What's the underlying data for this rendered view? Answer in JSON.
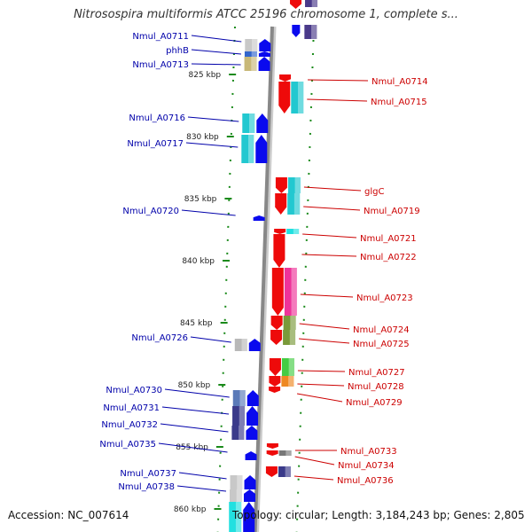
{
  "header": {
    "title": "Nitrosospira multiformis ATCC 25196 chromosome 1, complete s..."
  },
  "footer": {
    "accession": "Accession: NC_007614",
    "summary": "Topology: circular; Length: 3,184,243 bp; Genes: 2,805"
  },
  "colors": {
    "backbone": "#888888",
    "tick": "#1a8a1a",
    "forward_label": "#0000aa",
    "reverse_label": "#cc0000",
    "forward_arrow": "#0a0aee",
    "reverse_arrow": "#ee0a0a"
  },
  "scale": {
    "ticks": [
      {
        "label": "825 kbp"
      },
      {
        "label": "830 kbp"
      },
      {
        "label": "835 kbp"
      },
      {
        "label": "840 kbp"
      },
      {
        "label": "845 kbp"
      },
      {
        "label": "850 kbp"
      },
      {
        "label": "855 kbp"
      },
      {
        "label": "860 kbp"
      }
    ]
  },
  "genes": {
    "forward": [
      {
        "label": "Nmul_A0711",
        "color": "#0a0aee",
        "class_color": "#c8c8c8"
      },
      {
        "label": "phhB",
        "color": "#0a0aee",
        "class_color": "#3366cc"
      },
      {
        "label": "Nmul_A0713",
        "color": "#0a0aee",
        "class_color": "#c8b878"
      },
      {
        "label": "Nmul_A0716",
        "color": "#0a0aee",
        "class_color": "#22c8d0"
      },
      {
        "label": "Nmul_A0717",
        "color": "#0a0aee",
        "class_color": "#22c8d0"
      },
      {
        "label": "Nmul_A0720",
        "color": "#0a0aee",
        "class_color": ""
      },
      {
        "label": "Nmul_A0726",
        "color": "#0a0aee",
        "class_color": "#b8b8b8"
      },
      {
        "label": "Nmul_A0730",
        "color": "#0a0aee",
        "class_color": "#5a7ab8"
      },
      {
        "label": "Nmul_A0731",
        "color": "#0a0aee",
        "class_color": "#3a3a8a"
      },
      {
        "label": "Nmul_A0732",
        "color": "#0a0aee",
        "class_color": "#3a3a8a"
      },
      {
        "label": "Nmul_A0735",
        "color": "#0a0aee",
        "class_color": ""
      },
      {
        "label": "Nmul_A0737",
        "color": "#0a0aee",
        "class_color": "#c8c8c8"
      },
      {
        "label": "Nmul_A0738",
        "color": "#0a0aee",
        "class_color": "#c8c8c8"
      }
    ],
    "reverse": [
      {
        "label": "Nmul_A0714",
        "color": "#ee0a0a",
        "class_color": ""
      },
      {
        "label": "Nmul_A0715",
        "color": "#ee0a0a",
        "class_color": "#22c8d0"
      },
      {
        "label": "glgC",
        "color": "#ee0a0a",
        "class_color": "#22c8d0"
      },
      {
        "label": "Nmul_A0719",
        "color": "#ee0a0a",
        "class_color": "#22c8d0"
      },
      {
        "label": "Nmul_A0721",
        "color": "#ee0a0a",
        "class_color": "#22e0e0"
      },
      {
        "label": "Nmul_A0722",
        "color": "#ee0a0a",
        "class_color": ""
      },
      {
        "label": "Nmul_A0723",
        "color": "#ee0a0a",
        "class_color": "#ee3399"
      },
      {
        "label": "Nmul_A0724",
        "color": "#ee0a0a",
        "class_color": "#7a9a3a"
      },
      {
        "label": "Nmul_A0725",
        "color": "#ee0a0a",
        "class_color": "#7a9a3a"
      },
      {
        "label": "Nmul_A0727",
        "color": "#ee0a0a",
        "class_color": "#44cc44"
      },
      {
        "label": "Nmul_A0728",
        "color": "#ee0a0a",
        "class_color": "#ee8822"
      },
      {
        "label": "Nmul_A0729",
        "color": "#ee0a0a",
        "class_color": ""
      },
      {
        "label": "Nmul_A0733",
        "color": "#ee0a0a",
        "class_color": ""
      },
      {
        "label": "Nmul_A0734",
        "color": "#ee0a0a",
        "class_color": "#777777"
      },
      {
        "label": "Nmul_A0736",
        "color": "#ee0a0a",
        "class_color": "#3a3a8a"
      }
    ]
  }
}
